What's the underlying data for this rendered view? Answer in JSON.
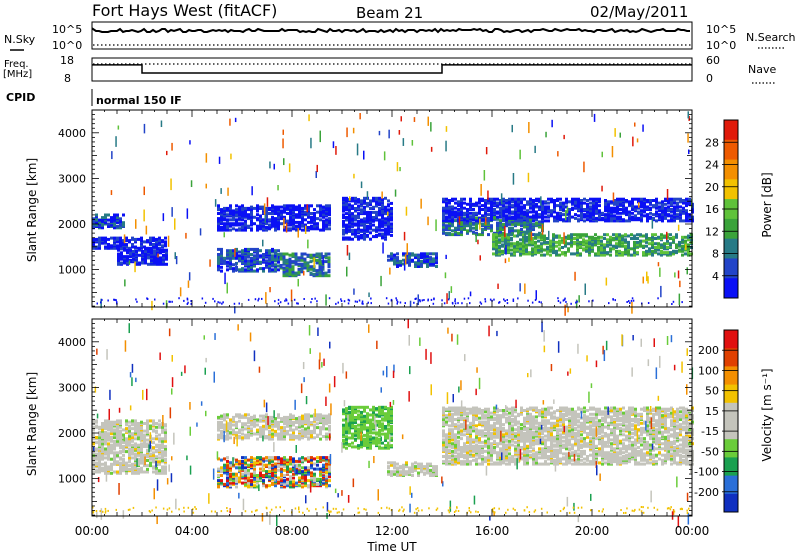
{
  "header": {
    "station": "Fort Hays West (fitACF)",
    "beam": "Beam 21",
    "date": "02/May/2011"
  },
  "strip_noise": {
    "left_label": "N.Sky",
    "right_label": "N.Search",
    "left_ticks": [
      "10^5",
      "10^0"
    ],
    "right_ticks": [
      "10^5",
      "10^0"
    ]
  },
  "strip_freq": {
    "left_label_1": "Freq.",
    "left_label_2": "[MHz]",
    "right_label": "Nave",
    "left_ticks": [
      "18",
      "8"
    ],
    "right_ticks": [
      "60",
      "0"
    ],
    "freq_segments": [
      {
        "t0": 0.0,
        "t1": 2.0,
        "mhz": 15
      },
      {
        "t0": 2.0,
        "t1": 14.0,
        "mhz": 11.5
      },
      {
        "t0": 14.0,
        "t1": 24.0,
        "mhz": 15
      }
    ]
  },
  "cpid": {
    "label": "CPID",
    "value": "normal 150 IF"
  },
  "chart_data": [
    {
      "type": "heatmap",
      "parameter": "power",
      "ylabel": "Slant Range [km]",
      "yticks": [
        "4000",
        "3000",
        "2000",
        "1000"
      ],
      "ylim": [
        180,
        4500
      ],
      "xlim": [
        0,
        24
      ],
      "colorbar_label": "Power [dB]",
      "colorbar_ticks": [
        "28",
        "24",
        "20",
        "16",
        "12",
        "8",
        "4"
      ],
      "colorbar_colors": [
        "#0a10f5",
        "#2244c8",
        "#277a86",
        "#3aa33a",
        "#5fc23a",
        "#f2c200",
        "#f38f00",
        "#ee5a00",
        "#e01a0a"
      ],
      "echo_bands": [
        {
          "t0": 0.0,
          "t1": 1.3,
          "r0": 1950,
          "r1": 2250,
          "level": 1
        },
        {
          "t0": 0.0,
          "t1": 3.0,
          "r0": 1500,
          "r1": 1750,
          "level": 0
        },
        {
          "t0": 1.0,
          "t1": 3.0,
          "r0": 1150,
          "r1": 1500,
          "level": 0
        },
        {
          "t0": 5.0,
          "t1": 9.5,
          "r0": 1900,
          "r1": 2450,
          "level": 0
        },
        {
          "t0": 5.0,
          "t1": 7.5,
          "r0": 1000,
          "r1": 1500,
          "level": 1
        },
        {
          "t0": 7.5,
          "t1": 9.5,
          "r0": 900,
          "r1": 1400,
          "level": 2
        },
        {
          "t0": 10.0,
          "t1": 12.0,
          "r0": 1700,
          "r1": 2600,
          "level": 0
        },
        {
          "t0": 11.8,
          "t1": 13.8,
          "r0": 1100,
          "r1": 1400,
          "level": 1
        },
        {
          "t0": 14.0,
          "t1": 18.0,
          "r0": 1800,
          "r1": 2200,
          "level": 2
        },
        {
          "t0": 16.0,
          "t1": 24.0,
          "r0": 1350,
          "r1": 1800,
          "level": 3
        },
        {
          "t0": 14.0,
          "t1": 24.0,
          "r0": 2100,
          "r1": 2600,
          "level": 0
        }
      ]
    },
    {
      "type": "heatmap",
      "parameter": "velocity",
      "ylabel": "Slant Range [km]",
      "yticks": [
        "4000",
        "3000",
        "2000",
        "1000"
      ],
      "ylim": [
        180,
        4500
      ],
      "xlim": [
        0,
        24
      ],
      "xlabel": "Time UT",
      "xticks": [
        "00:00",
        "04:00",
        "08:00",
        "12:00",
        "16:00",
        "20:00",
        "00:00"
      ],
      "colorbar_label": "Velocity [m s⁻¹]",
      "colorbar_ticks": [
        "200",
        "100",
        "50",
        "15",
        "-15",
        "-50",
        "-100",
        "-200"
      ],
      "colorbar_colors": [
        "#1030c0",
        "#2a6fd8",
        "#1aa050",
        "#6acc3a",
        "#c4c4bc",
        "#c4c4bc",
        "#f2c200",
        "#f38f00",
        "#e04000",
        "#e01010"
      ],
      "echo_bands": [
        {
          "t0": 0.0,
          "t1": 3.0,
          "r0": 1150,
          "r1": 2300,
          "level": "ground"
        },
        {
          "t0": 5.0,
          "t1": 9.5,
          "r0": 1900,
          "r1": 2450,
          "level": "ground"
        },
        {
          "t0": 5.0,
          "t1": 9.5,
          "r0": 850,
          "r1": 1500,
          "level": "mixed"
        },
        {
          "t0": 10.0,
          "t1": 12.0,
          "r0": 1700,
          "r1": 2600,
          "level": "green"
        },
        {
          "t0": 11.8,
          "t1": 13.8,
          "r0": 1100,
          "r1": 1400,
          "level": "ground"
        },
        {
          "t0": 14.0,
          "t1": 24.0,
          "r0": 1350,
          "r1": 2600,
          "level": "ground"
        }
      ]
    }
  ]
}
